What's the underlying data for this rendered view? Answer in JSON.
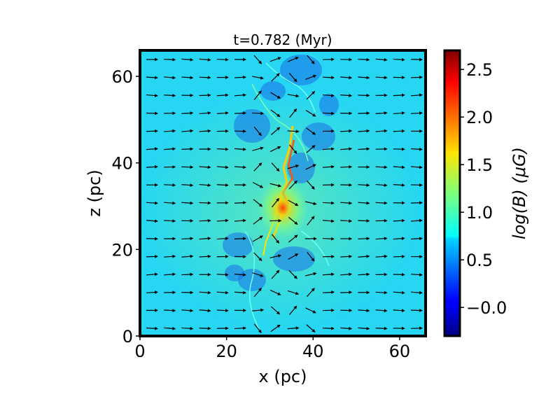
{
  "chart_data": {
    "type": "heatmap",
    "title": "t=0.782 (Myr)",
    "xlabel": "x (pc)",
    "ylabel": "z (pc)",
    "xlim": [
      0,
      66
    ],
    "ylim": [
      0,
      66
    ],
    "x_ticks": [
      0,
      20,
      40,
      60
    ],
    "y_ticks": [
      0,
      20,
      40,
      60
    ],
    "x_tick_labels": [
      "0",
      "20",
      "40",
      "60"
    ],
    "y_tick_labels": [
      "0",
      "20",
      "40",
      "60"
    ],
    "colormap": "jet",
    "colorbar": {
      "label": "log(B) (μG)",
      "range": [
        -0.3,
        2.7
      ],
      "ticks": [
        -0.0,
        0.5,
        1.0,
        1.5,
        2.0,
        2.5
      ],
      "tick_labels": [
        "−0.0",
        "0.5",
        "1.0",
        "1.5",
        "2.0",
        "2.5"
      ]
    },
    "field": {
      "background_log_b": 0.75,
      "filament_x_pc": 33,
      "peak_log_b": 2.6,
      "peak_location_pc": [
        33,
        29.5
      ]
    },
    "vector_overlay": {
      "description_quantity": "magnetic field direction",
      "color": "#000000",
      "dominant_direction": "+x"
    },
    "grid": false
  }
}
